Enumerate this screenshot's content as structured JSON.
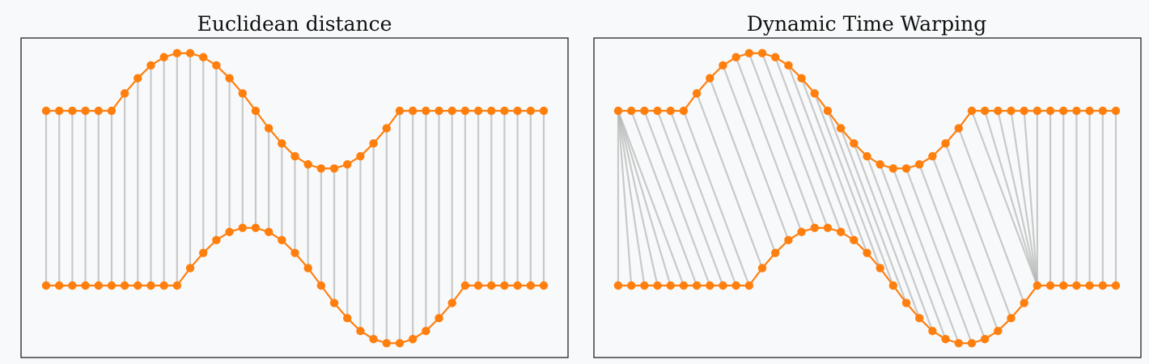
{
  "chart_data": [
    {
      "type": "line",
      "title": "Euclidean distance",
      "xlabel": "",
      "ylabel": "",
      "grid": false,
      "x": [
        0,
        1,
        2,
        3,
        4,
        5,
        6,
        7,
        8,
        9,
        10,
        11,
        12,
        13,
        14,
        15,
        16,
        17,
        18,
        19,
        20,
        21,
        22,
        23,
        24,
        25,
        26,
        27,
        28,
        29,
        30,
        31,
        32,
        33,
        34,
        35,
        36,
        37,
        38
      ],
      "series": [
        {
          "values": [
            0,
            0,
            0,
            0,
            0,
            0,
            0.3,
            0.56,
            0.78,
            0.92,
            0.99,
            0.99,
            0.92,
            0.78,
            0.56,
            0.3,
            0,
            -0.3,
            -0.56,
            -0.78,
            -0.92,
            -0.99,
            -0.99,
            -0.92,
            -0.78,
            -0.56,
            -0.3,
            0,
            0,
            0,
            0,
            0,
            0,
            0,
            0,
            0,
            0,
            0,
            0
          ]
        },
        {
          "values": [
            0,
            0,
            0,
            0,
            0,
            0,
            0,
            0,
            0,
            0,
            0,
            0.3,
            0.56,
            0.78,
            0.92,
            0.99,
            0.99,
            0.92,
            0.78,
            0.56,
            0.3,
            0,
            -0.3,
            -0.56,
            -0.78,
            -0.92,
            -0.99,
            -0.99,
            -0.92,
            -0.78,
            -0.56,
            -0.3,
            0,
            0,
            0,
            0,
            0,
            0,
            0
          ]
        }
      ],
      "matching": "one-to-one"
    },
    {
      "type": "line",
      "title": "Dynamic Time Warping",
      "xlabel": "",
      "ylabel": "",
      "grid": false,
      "x": [
        0,
        1,
        2,
        3,
        4,
        5,
        6,
        7,
        8,
        9,
        10,
        11,
        12,
        13,
        14,
        15,
        16,
        17,
        18,
        19,
        20,
        21,
        22,
        23,
        24,
        25,
        26,
        27,
        28,
        29,
        30,
        31,
        32,
        33,
        34,
        35,
        36,
        37,
        38
      ],
      "series": [
        {
          "values": [
            0,
            0,
            0,
            0,
            0,
            0,
            0.3,
            0.56,
            0.78,
            0.92,
            0.99,
            0.99,
            0.92,
            0.78,
            0.56,
            0.3,
            0,
            -0.3,
            -0.56,
            -0.78,
            -0.92,
            -0.99,
            -0.99,
            -0.92,
            -0.78,
            -0.56,
            -0.3,
            0,
            0,
            0,
            0,
            0,
            0,
            0,
            0,
            0,
            0,
            0,
            0
          ]
        },
        {
          "values": [
            0,
            0,
            0,
            0,
            0,
            0,
            0,
            0,
            0,
            0,
            0,
            0.3,
            0.56,
            0.78,
            0.92,
            0.99,
            0.99,
            0.92,
            0.78,
            0.56,
            0.3,
            0,
            -0.3,
            -0.56,
            -0.78,
            -0.92,
            -0.99,
            -0.99,
            -0.92,
            -0.78,
            -0.56,
            -0.3,
            0,
            0,
            0,
            0,
            0,
            0,
            0
          ]
        }
      ],
      "matching": "warping-path",
      "warping_path": [
        [
          0,
          0
        ],
        [
          0,
          1
        ],
        [
          0,
          2
        ],
        [
          0,
          3
        ],
        [
          0,
          4
        ],
        [
          0,
          5
        ],
        [
          1,
          6
        ],
        [
          2,
          7
        ],
        [
          3,
          8
        ],
        [
          4,
          9
        ],
        [
          5,
          10
        ],
        [
          6,
          11
        ],
        [
          7,
          12
        ],
        [
          8,
          13
        ],
        [
          9,
          14
        ],
        [
          10,
          15
        ],
        [
          11,
          16
        ],
        [
          12,
          17
        ],
        [
          13,
          18
        ],
        [
          14,
          19
        ],
        [
          15,
          20
        ],
        [
          16,
          21
        ],
        [
          17,
          22
        ],
        [
          18,
          23
        ],
        [
          19,
          24
        ],
        [
          20,
          25
        ],
        [
          21,
          26
        ],
        [
          22,
          27
        ],
        [
          23,
          28
        ],
        [
          24,
          29
        ],
        [
          25,
          30
        ],
        [
          26,
          31
        ],
        [
          27,
          32
        ],
        [
          28,
          32
        ],
        [
          29,
          32
        ],
        [
          30,
          32
        ],
        [
          31,
          32
        ],
        [
          32,
          32
        ],
        [
          33,
          33
        ],
        [
          34,
          34
        ],
        [
          35,
          35
        ],
        [
          36,
          36
        ],
        [
          37,
          37
        ],
        [
          38,
          38
        ]
      ]
    }
  ],
  "colors": {
    "series": "#ff7f0e",
    "link": "#b8b8b8",
    "frame": "#222222",
    "background": "#f8f9fa"
  }
}
